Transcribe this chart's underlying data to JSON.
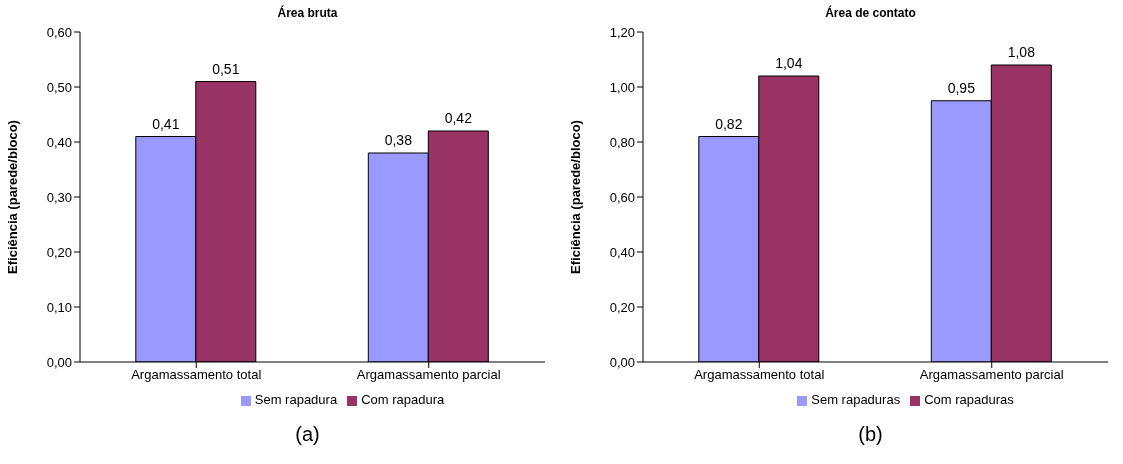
{
  "chart_data": [
    {
      "type": "bar",
      "title": "Área bruta",
      "ylabel": "Eficiência (parede/bloco)",
      "categories": [
        "Argamassamento total",
        "Argamassamento parcial"
      ],
      "series": [
        {
          "name": "Sem rapadura",
          "color": "#9999ff",
          "values": [
            0.41,
            0.38
          ],
          "value_labels": [
            "0,41",
            "0,38"
          ]
        },
        {
          "name": "Com rapadura",
          "color": "#993366",
          "values": [
            0.51,
            0.42
          ],
          "value_labels": [
            "0,51",
            "0,42"
          ]
        }
      ],
      "ylim": [
        0,
        0.6
      ],
      "yticks": [
        {
          "value": 0,
          "label": "0,00"
        },
        {
          "value": 0.1,
          "label": "0,10"
        },
        {
          "value": 0.2,
          "label": "0,20"
        },
        {
          "value": 0.3,
          "label": "0,30"
        },
        {
          "value": 0.4,
          "label": "0,40"
        },
        {
          "value": 0.5,
          "label": "0,50"
        },
        {
          "value": 0.6,
          "label": "0,60"
        }
      ],
      "grid": false,
      "legend": "bottom",
      "annotations": [
        "(a)"
      ]
    },
    {
      "type": "bar",
      "title": "Área de contato",
      "ylabel": "Eficiência (parede/bloco)",
      "categories": [
        "Argamassamento total",
        "Argamassamento parcial"
      ],
      "series": [
        {
          "name": "Sem rapaduras",
          "color": "#9999ff",
          "values": [
            0.82,
            0.95
          ],
          "value_labels": [
            "0,82",
            "0,95"
          ]
        },
        {
          "name": "Com rapaduras",
          "color": "#993366",
          "values": [
            1.04,
            1.08
          ],
          "value_labels": [
            "1,04",
            "1,08"
          ]
        }
      ],
      "ylim": [
        0,
        1.2
      ],
      "yticks": [
        {
          "value": 0,
          "label": "0,00"
        },
        {
          "value": 0.2,
          "label": "0,20"
        },
        {
          "value": 0.4,
          "label": "0,40"
        },
        {
          "value": 0.6,
          "label": "0,60"
        },
        {
          "value": 0.8,
          "label": "0,80"
        },
        {
          "value": 1,
          "label": "1,00"
        },
        {
          "value": 1.2,
          "label": "1,20"
        }
      ],
      "grid": false,
      "legend": "bottom",
      "annotations": [
        "(b)"
      ]
    }
  ]
}
